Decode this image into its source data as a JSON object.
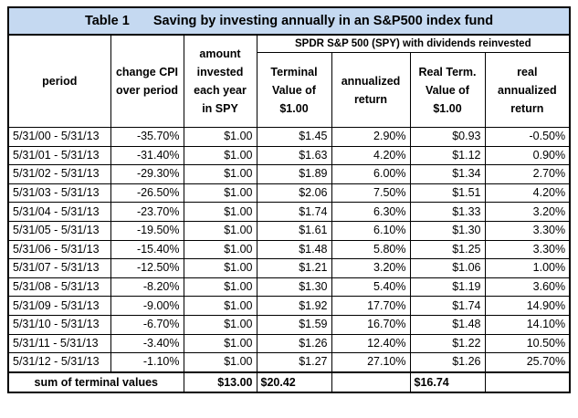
{
  "title": {
    "number": "Table 1",
    "text": "Saving by investing annually in an S&P500 index fund"
  },
  "headers": {
    "period": "period",
    "change_cpi": "change CPI over period",
    "amount_invested": "amount invested each year in SPY",
    "group": "SPDR S&P 500 (SPY) with dividends reinvested",
    "terminal_value": "Terminal Value of $1.00",
    "annualized_return": "annualized return",
    "real_terminal_value": "Real Term. Value of $1.00",
    "real_annualized_return": "real annualized return"
  },
  "rows": [
    {
      "period": "5/31/00 - 5/31/13",
      "cpi": "-35.70%",
      "amount": "$1.00",
      "terminal": "$1.45",
      "ann": "2.90%",
      "real_term": "$0.93",
      "real_ann": "-0.50%"
    },
    {
      "period": "5/31/01 - 5/31/13",
      "cpi": "-31.40%",
      "amount": "$1.00",
      "terminal": "$1.63",
      "ann": "4.20%",
      "real_term": "$1.12",
      "real_ann": "0.90%"
    },
    {
      "period": "5/31/02 - 5/31/13",
      "cpi": "-29.30%",
      "amount": "$1.00",
      "terminal": "$1.89",
      "ann": "6.00%",
      "real_term": "$1.34",
      "real_ann": "2.70%"
    },
    {
      "period": "5/31/03 - 5/31/13",
      "cpi": "-26.50%",
      "amount": "$1.00",
      "terminal": "$2.06",
      "ann": "7.50%",
      "real_term": "$1.51",
      "real_ann": "4.20%"
    },
    {
      "period": "5/31/04 - 5/31/13",
      "cpi": "-23.70%",
      "amount": "$1.00",
      "terminal": "$1.74",
      "ann": "6.30%",
      "real_term": "$1.33",
      "real_ann": "3.20%"
    },
    {
      "period": "5/31/05 - 5/31/13",
      "cpi": "-19.50%",
      "amount": "$1.00",
      "terminal": "$1.61",
      "ann": "6.10%",
      "real_term": "$1.30",
      "real_ann": "3.30%"
    },
    {
      "period": "5/31/06 - 5/31/13",
      "cpi": "-15.40%",
      "amount": "$1.00",
      "terminal": "$1.48",
      "ann": "5.80%",
      "real_term": "$1.25",
      "real_ann": "3.30%"
    },
    {
      "period": "5/31/07 - 5/31/13",
      "cpi": "-12.50%",
      "amount": "$1.00",
      "terminal": "$1.21",
      "ann": "3.20%",
      "real_term": "$1.06",
      "real_ann": "1.00%"
    },
    {
      "period": "5/31/08 - 5/31/13",
      "cpi": "-8.20%",
      "amount": "$1.00",
      "terminal": "$1.30",
      "ann": "5.40%",
      "real_term": "$1.19",
      "real_ann": "3.60%"
    },
    {
      "period": "5/31/09 - 5/31/13",
      "cpi": "-9.00%",
      "amount": "$1.00",
      "terminal": "$1.92",
      "ann": "17.70%",
      "real_term": "$1.74",
      "real_ann": "14.90%"
    },
    {
      "period": "5/31/10 - 5/31/13",
      "cpi": "-6.70%",
      "amount": "$1.00",
      "terminal": "$1.59",
      "ann": "16.70%",
      "real_term": "$1.48",
      "real_ann": "14.10%"
    },
    {
      "period": "5/31/11 - 5/31/13",
      "cpi": "-3.40%",
      "amount": "$1.00",
      "terminal": "$1.26",
      "ann": "12.40%",
      "real_term": "$1.22",
      "real_ann": "10.50%"
    },
    {
      "period": "5/31/12 - 5/31/13",
      "cpi": "-1.10%",
      "amount": "$1.00",
      "terminal": "$1.27",
      "ann": "27.10%",
      "real_term": "$1.26",
      "real_ann": "25.70%"
    }
  ],
  "footer": {
    "label": "sum of terminal values",
    "amount_total": "$13.00",
    "terminal_total": "$20.42",
    "real_terminal_total": "$16.74"
  }
}
